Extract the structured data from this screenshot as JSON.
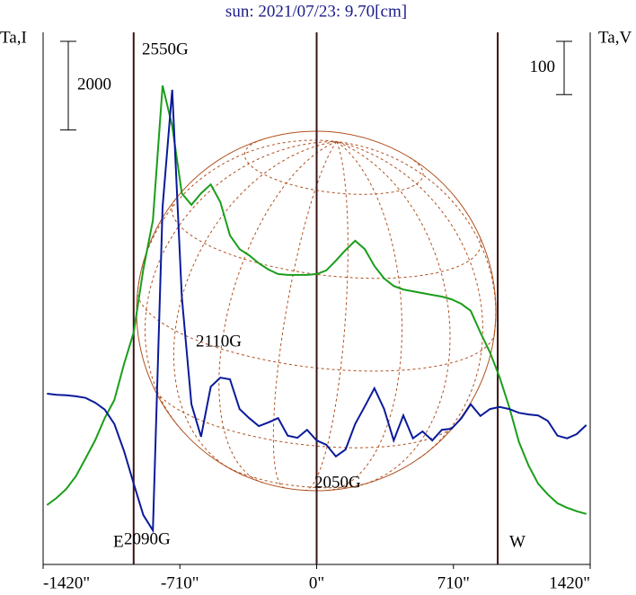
{
  "chart_data": {
    "type": "line",
    "title": "sun: 2021/07/23: 9.70[cm]",
    "ylabel": "Ta,I",
    "y2label": "Ta,V",
    "xlim": [
      -1420,
      1420
    ],
    "xticks": [
      {
        "value": -1420,
        "label": "-1420\""
      },
      {
        "value": -710,
        "label": "-710\""
      },
      {
        "value": 0,
        "label": "0\""
      },
      {
        "value": 710,
        "label": "710\""
      },
      {
        "value": 1420,
        "label": "1420\""
      }
    ],
    "ylim": [
      0,
      12000
    ],
    "y2lim": [
      -500,
      500
    ],
    "scale_bar_I": 2000,
    "scale_bar_V": 100,
    "limb_lines": [
      -950,
      0,
      940
    ],
    "annotations": [
      "2550G",
      "2110G",
      "2050G",
      "2090G",
      "E",
      "W"
    ],
    "x": [
      -1400,
      -1350,
      -1300,
      -1250,
      -1200,
      -1150,
      -1100,
      -1050,
      -1000,
      -950,
      -900,
      -850,
      -800,
      -750,
      -700,
      -650,
      -600,
      -550,
      -500,
      -450,
      -400,
      -350,
      -300,
      -250,
      -200,
      -150,
      -100,
      -50,
      0,
      50,
      100,
      150,
      200,
      250,
      300,
      350,
      400,
      450,
      500,
      550,
      600,
      650,
      700,
      750,
      800,
      850,
      900,
      950,
      1000,
      1050,
      1100,
      1150,
      1200,
      1250,
      1300,
      1350,
      1400
    ],
    "series": [
      {
        "name": "I",
        "color": "#1a9e1a",
        "values": [
          1340,
          1500,
          1700,
          1990,
          2390,
          2800,
          3300,
          3710,
          4520,
          5230,
          6650,
          7760,
          10800,
          9890,
          8370,
          8110,
          8370,
          8570,
          8170,
          7420,
          7110,
          6970,
          6790,
          6650,
          6550,
          6530,
          6530,
          6530,
          6550,
          6630,
          6850,
          7090,
          7300,
          7110,
          6730,
          6450,
          6280,
          6200,
          6160,
          6120,
          6080,
          6040,
          5980,
          5880,
          5720,
          5230,
          4780,
          4220,
          3550,
          2760,
          2230,
          1820,
          1580,
          1380,
          1280,
          1200,
          1140
        ]
      },
      {
        "name": "V",
        "color": "#0a1a9a",
        "axis": "y2",
        "values": [
          -179,
          -181,
          -182,
          -184,
          -187,
          -196,
          -209,
          -236,
          -287,
          -348,
          -407,
          -436,
          172,
          392,
          3,
          -199,
          -260,
          -166,
          -149,
          -152,
          -208,
          -225,
          -240,
          -233,
          -225,
          -258,
          -262,
          -247,
          -267,
          -275,
          -297,
          -284,
          -236,
          -203,
          -169,
          -208,
          -267,
          -220,
          -263,
          -250,
          -267,
          -247,
          -245,
          -226,
          -199,
          -221,
          -208,
          -204,
          -208,
          -215,
          -218,
          -220,
          -230,
          -258,
          -263,
          -255,
          -238
        ]
      }
    ]
  }
}
